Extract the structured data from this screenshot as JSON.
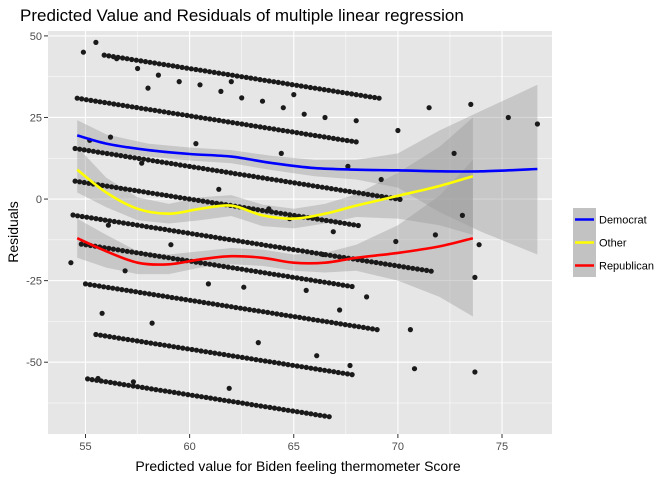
{
  "chart_data": {
    "type": "scatter",
    "title": "Predicted Value and Residuals of multiple linear regression",
    "xlabel": "Predicted value for Biden feeling thermometer Score",
    "ylabel": "Residuals",
    "xlim": [
      53.2,
      77.4
    ],
    "ylim": [
      -72.0,
      51.5
    ],
    "x_ticks": [
      55,
      60,
      65,
      70,
      75
    ],
    "y_ticks": [
      50,
      25,
      0,
      -25,
      -50
    ],
    "x_tick_labels": [
      "55",
      "60",
      "65",
      "70",
      "75"
    ],
    "y_tick_labels": [
      "50",
      "25",
      "0",
      "-25",
      "-50"
    ],
    "grid": true,
    "legend_position": "right",
    "colors": {
      "panel_background": "#e6e6e6",
      "grid_major": "#ffffff",
      "points": "#1a1a1a",
      "confidence_band": "#999999"
    },
    "legend": {
      "entries": [
        {
          "label": "Democrat",
          "color": "#0000ff"
        },
        {
          "label": "Other",
          "color": "#ffff00"
        },
        {
          "label": "Republican",
          "color": "#ff0000"
        }
      ]
    },
    "series": [
      {
        "name": "Democrat",
        "color": "#0000ff",
        "x": [
          54.6,
          56,
          58,
          60,
          62,
          64,
          66,
          68,
          70,
          72,
          74,
          76.7
        ],
        "y": [
          19.5,
          17,
          15,
          13.8,
          13,
          11,
          9.5,
          9,
          8.8,
          8.5,
          8.5,
          9.2
        ],
        "ci_lower": [
          14.8,
          14.2,
          13,
          11.8,
          11,
          8.8,
          7,
          6,
          3.5,
          -4,
          -10,
          -17
        ],
        "ci_upper": [
          24.2,
          19.8,
          17,
          15.8,
          15,
          13.2,
          12,
          12,
          14,
          21,
          27,
          35
        ]
      },
      {
        "name": "Other",
        "color": "#ffff00",
        "x": [
          54.6,
          56,
          57.5,
          59,
          60.5,
          62,
          63.5,
          65,
          66.5,
          68,
          70,
          72,
          73.6
        ],
        "y": [
          9,
          2,
          -3,
          -4.5,
          -3,
          -2,
          -5,
          -6,
          -4.5,
          -2,
          1,
          4,
          7
        ],
        "ci_lower": [
          2,
          -2.5,
          -6.5,
          -7.5,
          -6.5,
          -5.2,
          -8.3,
          -9,
          -7.5,
          -5.5,
          -6,
          -8,
          -11
        ],
        "ci_upper": [
          16,
          6.5,
          0.5,
          -1.5,
          0.5,
          1.2,
          -1.7,
          -3,
          -1.5,
          1.5,
          8,
          16,
          25
        ]
      },
      {
        "name": "Republican",
        "color": "#ff0000",
        "x": [
          54.6,
          56,
          57.5,
          59,
          60.5,
          62,
          63.5,
          65,
          66.5,
          68,
          70,
          72,
          73.6
        ],
        "y": [
          -12,
          -16,
          -19.5,
          -20,
          -18.5,
          -17.5,
          -18,
          -19.5,
          -19.5,
          -18,
          -16.5,
          -14.5,
          -12
        ],
        "ci_lower": [
          -18,
          -21,
          -23,
          -23,
          -21,
          -20,
          -20.5,
          -22,
          -22.5,
          -22,
          -25,
          -30,
          -36
        ],
        "ci_upper": [
          -6,
          -11,
          -16,
          -17,
          -16,
          -15,
          -15.5,
          -17,
          -16.5,
          -14,
          -8,
          1,
          12
        ]
      }
    ],
    "scatter_points": {
      "x": [
        55.5,
        56.5,
        57.5,
        58.5,
        59.5,
        60.5,
        61.5,
        62.5,
        63.5,
        64.5,
        65.5,
        66.5,
        54.9,
        58.0,
        62.0,
        65.0,
        68.0,
        70.0,
        71.5,
        73.5,
        56.2,
        60.3,
        64.4,
        67.6,
        69.2,
        72.7,
        75.3,
        76.7,
        55.2,
        57.7,
        61.4,
        63.8,
        66.9,
        69.9,
        71.8,
        54.3,
        56.9,
        60.9,
        62.6,
        65.6,
        68.5,
        70.6,
        55.8,
        58.2,
        63.3,
        66.1,
        67.7,
        73.1,
        73.9,
        73.7,
        55.6,
        57.3,
        61.9,
        70.8,
        73.7,
        56.1,
        59.1,
        64.8,
        66.4,
        67.2
      ],
      "y": [
        48.0,
        43.0,
        40.0,
        38.0,
        36.0,
        35.0,
        33.0,
        31.0,
        30.0,
        28.0,
        26.0,
        25.0,
        45.0,
        34.0,
        36.0,
        32.0,
        24.0,
        21.0,
        28.0,
        29.0,
        19.0,
        17.0,
        14.0,
        10.0,
        6.0,
        14.0,
        25.0,
        23.0,
        18.0,
        11.0,
        3.0,
        -3.0,
        -10.0,
        -13.0,
        -11.0,
        -19.5,
        -22.0,
        -26.0,
        -27.0,
        -28.0,
        -30.0,
        -40.0,
        -35.0,
        -38.0,
        -44.0,
        -48.0,
        -51.0,
        -5.0,
        -14.0,
        -53.0,
        -55.0,
        -56.0,
        -58.0,
        -52.0,
        -24.0,
        -8.0,
        -14.0,
        -6.0,
        -17.0,
        -34.0
      ],
      "bands": [
        {
          "y_at_55": 45,
          "x_start": 55.9,
          "x_end": 69.1
        },
        {
          "y_at_55": 30.5,
          "x_start": 54.6,
          "x_end": 68.0
        },
        {
          "y_at_55": 15,
          "x_start": 54.5,
          "x_end": 70.1
        },
        {
          "y_at_55": 5,
          "x_start": 54.5,
          "x_end": 68.1
        },
        {
          "y_at_55": -5.5,
          "x_start": 54.4,
          "x_end": 71.6
        },
        {
          "y_at_55": -14,
          "x_start": 54.8,
          "x_end": 67.8
        },
        {
          "y_at_55": -26,
          "x_start": 55.0,
          "x_end": 69.0
        },
        {
          "y_at_55": -41,
          "x_start": 55.5,
          "x_end": 67.8
        },
        {
          "y_at_55": -55,
          "x_start": 55.1,
          "x_end": 66.7
        }
      ]
    }
  }
}
